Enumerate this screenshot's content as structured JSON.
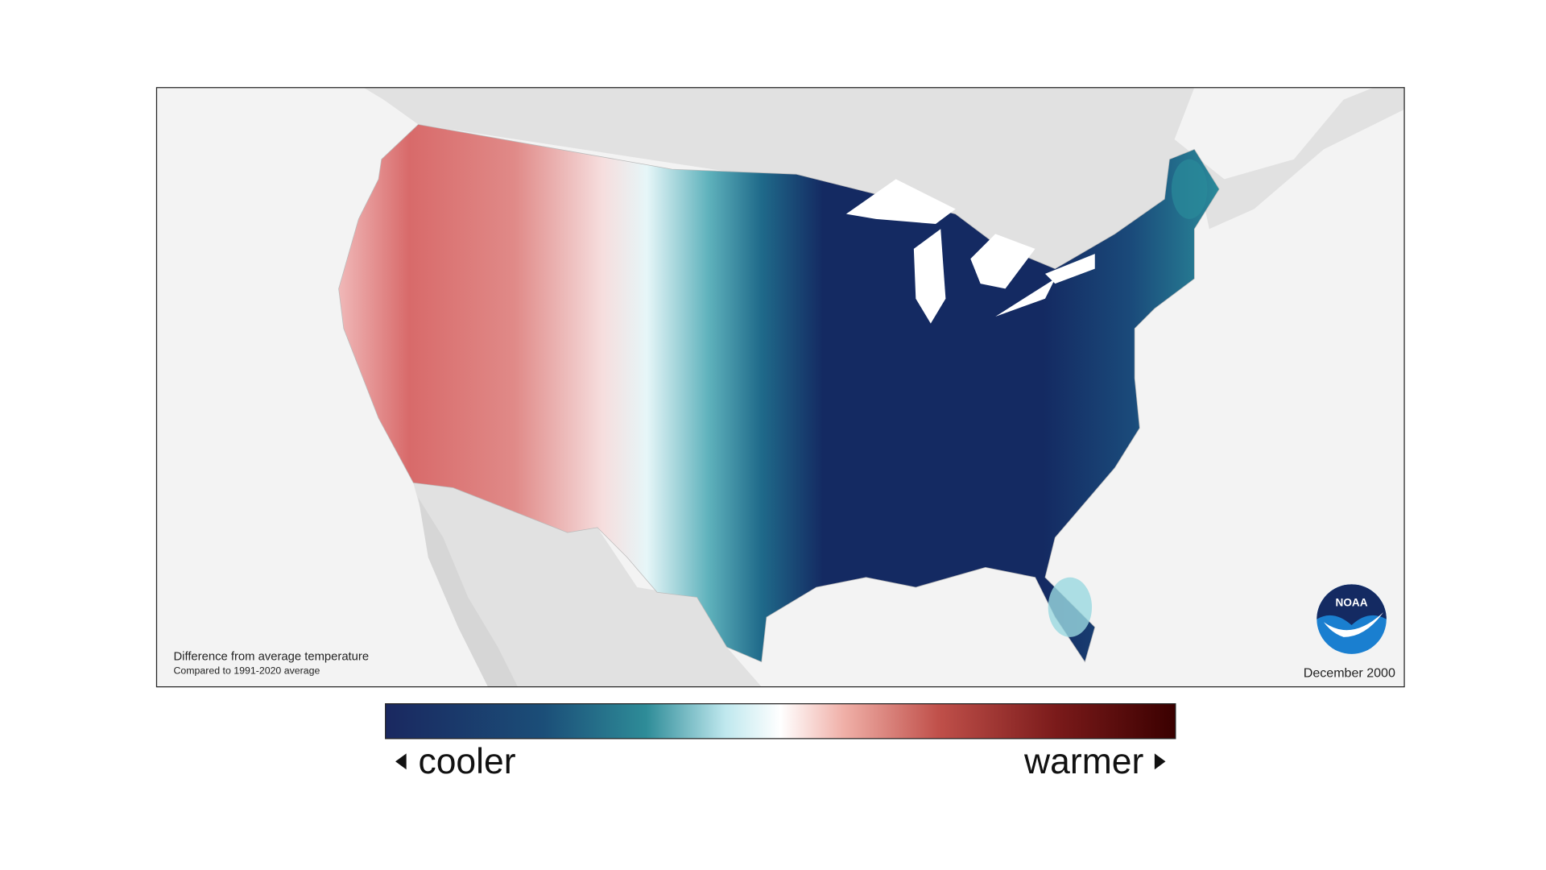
{
  "map": {
    "caption": "Difference from average temperature",
    "subcaption": "Compared to 1991-2020 average",
    "date": "December 2000"
  },
  "legend": {
    "low_label": "cooler",
    "high_label": "warmer"
  },
  "logo": {
    "text": "NOAA"
  }
}
